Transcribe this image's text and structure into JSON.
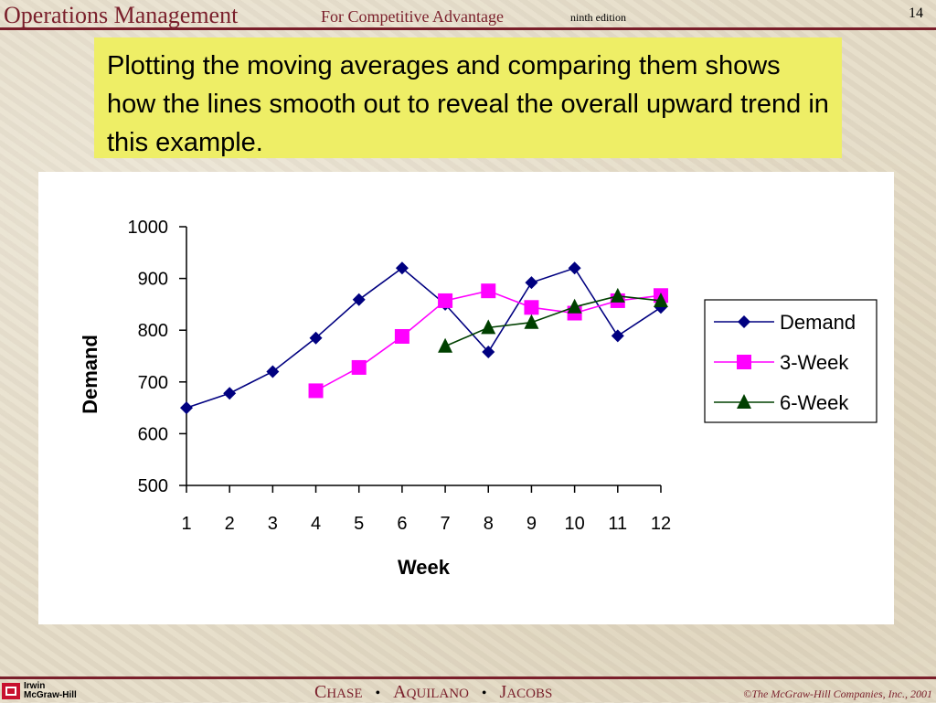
{
  "header": {
    "title": "Operations Management",
    "subtitle": "For Competitive Advantage",
    "edition": "ninth edition",
    "page_number": "14"
  },
  "callout": {
    "text": "Plotting the moving averages and comparing them shows how the lines smooth out to reveal the overall upward trend in this example."
  },
  "chart_data": {
    "type": "line",
    "title": "",
    "xlabel": "Week",
    "ylabel": "Demand",
    "categories": [
      "1",
      "2",
      "3",
      "4",
      "5",
      "6",
      "7",
      "8",
      "9",
      "10",
      "11",
      "12"
    ],
    "ylim": [
      500,
      1000
    ],
    "yticks": [
      500,
      600,
      700,
      800,
      900,
      1000
    ],
    "grid": false,
    "legend_position": "right",
    "series": [
      {
        "name": "Demand",
        "marker": "diamond",
        "color": "#000080",
        "values": [
          650,
          678,
          720,
          785,
          859,
          920,
          850,
          758,
          892,
          920,
          789,
          844
        ]
      },
      {
        "name": "3-Week",
        "marker": "square",
        "color": "#ff00ff",
        "values": [
          null,
          null,
          null,
          683,
          728,
          788,
          857,
          876,
          844,
          833,
          857,
          867
        ]
      },
      {
        "name": "6-Week",
        "marker": "triangle",
        "color": "#004000",
        "values": [
          null,
          null,
          null,
          null,
          null,
          null,
          769,
          805,
          815,
          845,
          866,
          857
        ]
      }
    ]
  },
  "footer": {
    "logo_line1": "Irwin",
    "logo_line2": "McGraw-Hill",
    "copyright": "©The McGraw-Hill Companies, Inc., 2001"
  }
}
